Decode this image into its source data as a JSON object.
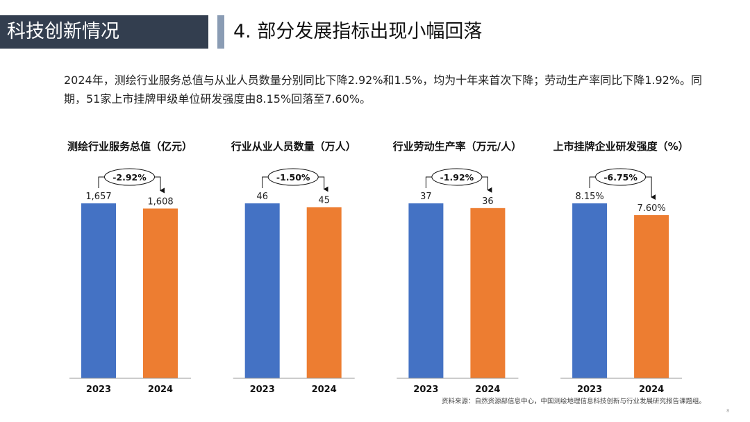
{
  "header": {
    "section": "科技创新情况",
    "title": "4. 部分发展指标出现小幅回落"
  },
  "summary": "2024年，测绘行业服务总值与从业人员数量分别同比下降2.92%和1.5%，均为十年来首次下降；劳动生产率同比下降1.92%。同期，51家上市挂牌甲级单位研发强度由8.15%回落至7.60%。",
  "colors": {
    "bar_2023": "#4472c4",
    "bar_2024": "#ed7d31",
    "header_bg": "#333e4f",
    "accent": "#8a9cb4"
  },
  "chart_data": [
    {
      "type": "bar",
      "title": "测绘行业服务总值（亿元）",
      "categories": [
        "2023",
        "2024"
      ],
      "values": [
        1657,
        1608
      ],
      "labels": [
        "1,657",
        "1,608"
      ],
      "change": "-2.92%"
    },
    {
      "type": "bar",
      "title": "行业从业人员数量（万人）",
      "categories": [
        "2023",
        "2024"
      ],
      "values": [
        46,
        45
      ],
      "labels": [
        "46",
        "45"
      ],
      "change": "-1.50%"
    },
    {
      "type": "bar",
      "title": "行业劳动生产率（万元/人）",
      "categories": [
        "2023",
        "2024"
      ],
      "values": [
        37,
        36
      ],
      "labels": [
        "37",
        "36"
      ],
      "change": "-1.92%"
    },
    {
      "type": "bar",
      "title": "上市挂牌企业研发强度（%）",
      "categories": [
        "2023",
        "2024"
      ],
      "values": [
        8.15,
        7.6
      ],
      "labels": [
        "8.15%",
        "7.60%"
      ],
      "change": "-6.75%"
    }
  ],
  "footer": {
    "source": "资料来源：自然资源部信息中心，中国测绘地理信息科技创新与行业发展研究报告课题组。",
    "page": "8"
  }
}
